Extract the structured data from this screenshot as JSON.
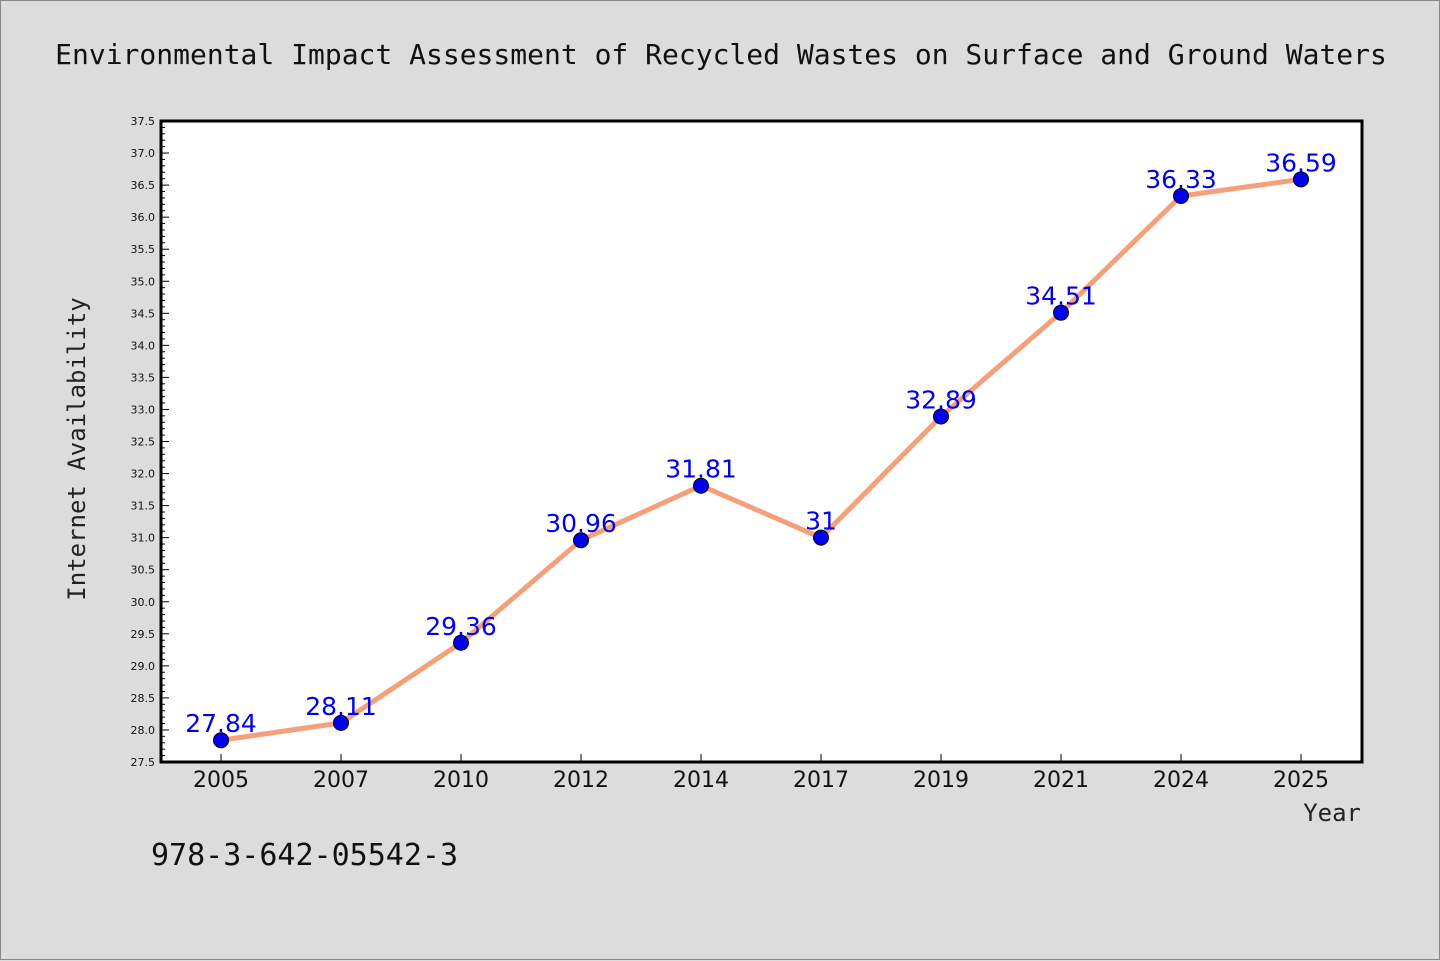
{
  "colors": {
    "background": "#dcdcdc",
    "plot_background": "#ffffff",
    "line": "#f4a07a",
    "marker": "#0000ee",
    "data_label": "#0000ee"
  },
  "footnote": "978-3-642-05542-3",
  "chart_data": {
    "type": "line",
    "title": "Environmental Impact Assessment of Recycled Wastes on Surface and Ground Waters",
    "xlabel": "Year",
    "ylabel": "Internet Availability",
    "categories": [
      "2005",
      "2007",
      "2010",
      "2012",
      "2014",
      "2017",
      "2019",
      "2021",
      "2024",
      "2025"
    ],
    "series": [
      {
        "values": [
          27.84,
          28.11,
          29.36,
          30.96,
          31.81,
          31,
          32.89,
          34.51,
          36.33,
          36.59
        ],
        "labels": [
          "27.84",
          "28.11",
          "29.36",
          "30.96",
          "31.81",
          "31",
          "32.89",
          "34.51",
          "36.33",
          "36.59"
        ]
      }
    ],
    "ylim": [
      27.5,
      37.5
    ],
    "yticks": [
      "27.5",
      "28.0",
      "28.5",
      "29.0",
      "29.5",
      "30.0",
      "30.5",
      "31.0",
      "31.5",
      "32.0",
      "32.5",
      "33.0",
      "33.5",
      "34.0",
      "34.5",
      "35.0",
      "35.5",
      "36.0",
      "36.5",
      "37.0",
      "37.5"
    ],
    "grid": false,
    "legend": "none"
  }
}
